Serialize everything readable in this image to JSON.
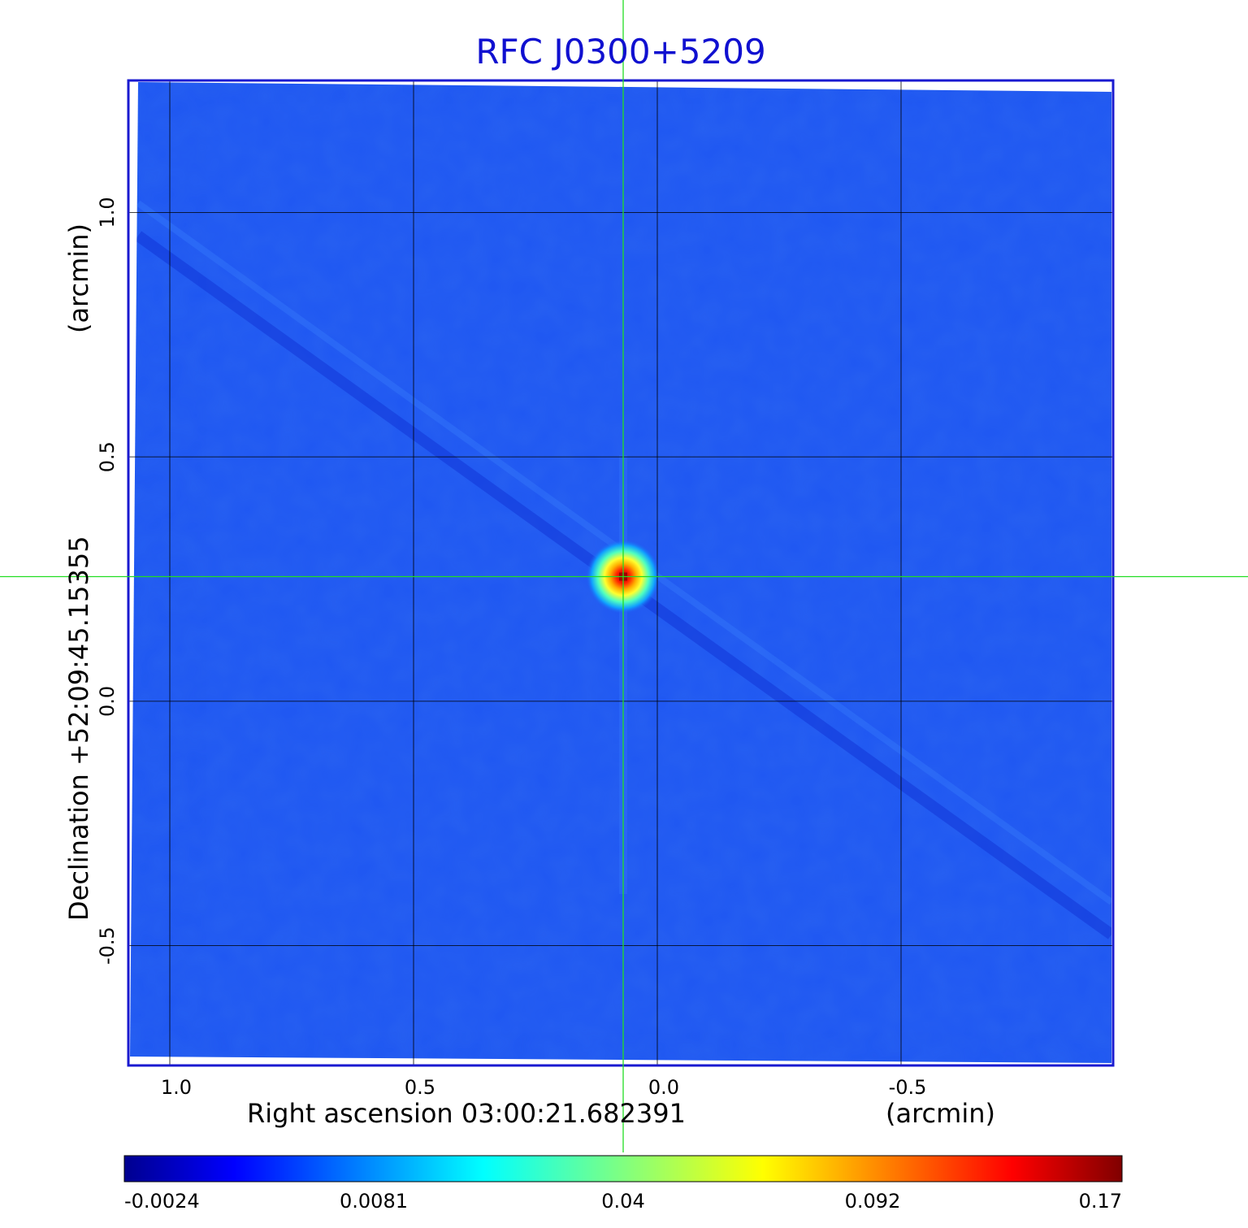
{
  "chart_data": {
    "type": "heatmap",
    "title": "RFC J0300+5209",
    "xlabel": "Right ascension  03:00:21.682391",
    "xunit": "(arcmin)",
    "ylabel": "Declination  +52:09:45.15355",
    "yunit": "(arcmin)",
    "x_ticks": [
      1.0,
      0.5,
      0.0,
      -0.5
    ],
    "x_tick_labels": [
      "1.0",
      "0.5",
      "0.0",
      "-0.5"
    ],
    "y_ticks": [
      1.0,
      0.5,
      0.0,
      -0.5
    ],
    "y_tick_labels": [
      "1.0",
      "0.5",
      "0.0",
      "-0.5"
    ],
    "xlim": [
      1.085,
      -0.935
    ],
    "ylim": [
      -0.745,
      1.27
    ],
    "x_reversed": true,
    "grid": true,
    "colormap": "jet",
    "colorbar": {
      "orientation": "horizontal",
      "position": "bottom",
      "ticks": [
        -0.0024,
        0.0081,
        0.04,
        0.092,
        0.17
      ],
      "tick_labels": [
        "-0.0024",
        "0.0081",
        "0.04",
        "0.092",
        "0.17"
      ]
    },
    "source": {
      "name": "RFC J0300+5209",
      "x": 0.07,
      "y": 0.255,
      "peak": 0.17
    },
    "crosshair": {
      "x": 0.07,
      "y": 0.255
    },
    "background_level": 0.001
  },
  "colors": {
    "title": "#1010d0",
    "frame": "#1a1ad0",
    "crosshair": "#22dd22",
    "grid": "#000000",
    "text": "#000000"
  }
}
